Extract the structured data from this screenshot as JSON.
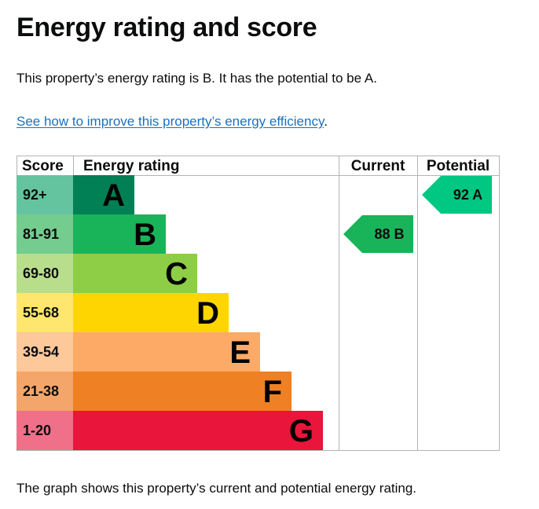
{
  "page": {
    "title": "Energy rating and score",
    "summary": "This property’s energy rating is B. It has the potential to be A.",
    "improve_link": "See how to improve this property’s energy efficiency",
    "improve_suffix": ".",
    "caption": "The graph shows this property’s current and potential energy rating."
  },
  "chart_data": {
    "type": "bar",
    "title": "Energy rating and score",
    "headers": {
      "score": "Score",
      "rating": "Energy rating",
      "current": "Current",
      "potential": "Potential"
    },
    "bands": [
      {
        "band": "A",
        "range": "92+",
        "min": 92,
        "max": 100,
        "color": "#008054",
        "score_color": "#64c4a0"
      },
      {
        "band": "B",
        "range": "81-91",
        "min": 81,
        "max": 91,
        "color": "#19b459",
        "score_color": "#74cc8e"
      },
      {
        "band": "C",
        "range": "69-80",
        "min": 69,
        "max": 80,
        "color": "#8dce46",
        "score_color": "#b8de8c"
      },
      {
        "band": "D",
        "range": "55-68",
        "min": 55,
        "max": 68,
        "color": "#ffd500",
        "score_color": "#ffe66e"
      },
      {
        "band": "E",
        "range": "39-54",
        "min": 39,
        "max": 54,
        "color": "#fcaa65",
        "score_color": "#fdc89a"
      },
      {
        "band": "F",
        "range": "21-38",
        "min": 21,
        "max": 38,
        "color": "#ef8023",
        "score_color": "#f4a66a"
      },
      {
        "band": "G",
        "range": "1-20",
        "min": 1,
        "max": 20,
        "color": "#e9153b",
        "score_color": "#f0708a"
      }
    ],
    "current": {
      "score": 88,
      "band": "B",
      "label": "88 B",
      "color": "#19b459"
    },
    "potential": {
      "score": 92,
      "band": "A",
      "label": "92 A",
      "color": "#00c781"
    }
  }
}
